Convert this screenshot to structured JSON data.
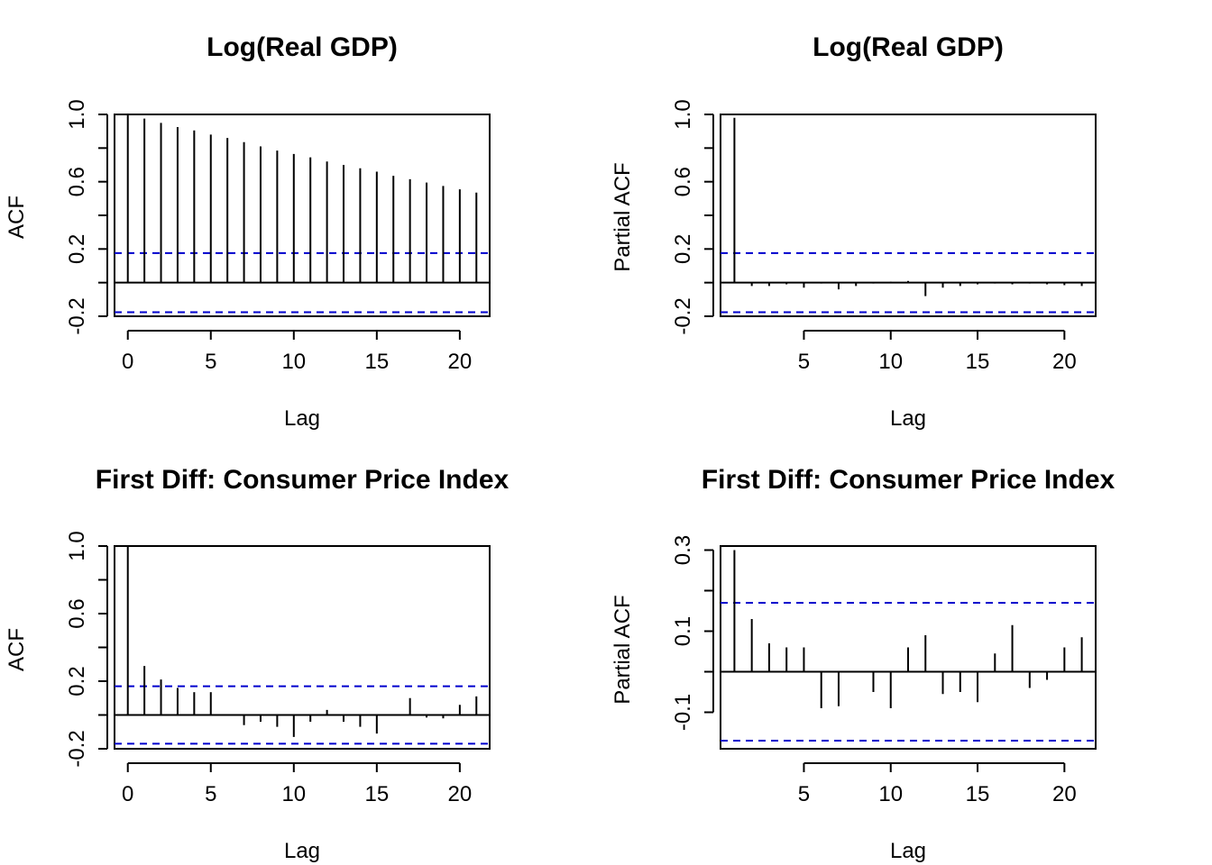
{
  "chart_data": [
    {
      "type": "bar",
      "title": "Log(Real GDP)",
      "xlabel": "Lag",
      "ylabel": "ACF",
      "xlim": [
        -0.8,
        21.8
      ],
      "ylim": [
        -0.2,
        1.0
      ],
      "xticks": [
        0,
        5,
        10,
        15,
        20
      ],
      "xtick_labels": [
        "0",
        "5",
        "10",
        "15",
        "20"
      ],
      "yticks": [
        -0.2,
        0.2,
        0.6,
        1.0
      ],
      "ytick_labels": [
        "-0.2",
        "0.2",
        "0.6",
        "1.0"
      ],
      "yminor": [
        0.0,
        0.4,
        0.8
      ],
      "conf_bound": 0.176,
      "line_color": "#000000",
      "conf_color": "#0000cd",
      "x": [
        0,
        1,
        2,
        3,
        4,
        5,
        6,
        7,
        8,
        9,
        10,
        11,
        12,
        13,
        14,
        15,
        16,
        17,
        18,
        19,
        20,
        21
      ],
      "values": [
        1.0,
        0.975,
        0.95,
        0.925,
        0.905,
        0.88,
        0.86,
        0.835,
        0.81,
        0.785,
        0.765,
        0.745,
        0.72,
        0.7,
        0.68,
        0.66,
        0.635,
        0.615,
        0.595,
        0.575,
        0.555,
        0.535
      ]
    },
    {
      "type": "bar",
      "title": "Log(Real GDP)",
      "xlabel": "Lag",
      "ylabel": "Partial ACF",
      "xlim": [
        0.2,
        21.8
      ],
      "ylim": [
        -0.2,
        1.0
      ],
      "xticks": [
        5,
        10,
        15,
        20
      ],
      "xtick_labels": [
        "5",
        "10",
        "15",
        "20"
      ],
      "yticks": [
        -0.2,
        0.2,
        0.6,
        1.0
      ],
      "ytick_labels": [
        "-0.2",
        "0.2",
        "0.6",
        "1.0"
      ],
      "yminor": [
        0.0,
        0.4,
        0.8
      ],
      "conf_bound": 0.176,
      "line_color": "#000000",
      "conf_color": "#0000cd",
      "x": [
        1,
        2,
        3,
        4,
        5,
        6,
        7,
        8,
        9,
        10,
        11,
        12,
        13,
        14,
        15,
        16,
        17,
        18,
        19,
        20,
        21
      ],
      "values": [
        0.98,
        -0.02,
        -0.02,
        -0.01,
        -0.03,
        -0.005,
        -0.04,
        -0.02,
        -0.005,
        0.005,
        0.01,
        -0.08,
        -0.03,
        -0.02,
        -0.01,
        -0.005,
        -0.01,
        -0.005,
        -0.01,
        -0.015,
        -0.02
      ]
    },
    {
      "type": "bar",
      "title": "First Diff: Consumer Price Index",
      "xlabel": "Lag",
      "ylabel": "ACF",
      "xlim": [
        -0.8,
        21.8
      ],
      "ylim": [
        -0.2,
        1.0
      ],
      "xticks": [
        0,
        5,
        10,
        15,
        20
      ],
      "xtick_labels": [
        "0",
        "5",
        "10",
        "15",
        "20"
      ],
      "yticks": [
        -0.2,
        0.2,
        0.6,
        1.0
      ],
      "ytick_labels": [
        "-0.2",
        "0.2",
        "0.6",
        "1.0"
      ],
      "yminor": [
        0.0,
        0.4,
        0.8
      ],
      "conf_bound": 0.17,
      "line_color": "#000000",
      "conf_color": "#0000cd",
      "x": [
        0,
        1,
        2,
        3,
        4,
        5,
        6,
        7,
        8,
        9,
        10,
        11,
        12,
        13,
        14,
        15,
        16,
        17,
        18,
        19,
        20,
        21
      ],
      "values": [
        1.0,
        0.29,
        0.21,
        0.16,
        0.135,
        0.135,
        0.0,
        -0.06,
        -0.04,
        -0.07,
        -0.13,
        -0.04,
        0.03,
        -0.04,
        -0.07,
        -0.11,
        0.0,
        0.1,
        -0.015,
        -0.02,
        0.06,
        0.11
      ]
    },
    {
      "type": "bar",
      "title": "First Diff: Consumer Price Index",
      "xlabel": "Lag",
      "ylabel": "Partial ACF",
      "xlim": [
        0.2,
        21.8
      ],
      "ylim": [
        -0.19,
        0.31
      ],
      "xticks": [
        5,
        10,
        15,
        20
      ],
      "xtick_labels": [
        "5",
        "10",
        "15",
        "20"
      ],
      "yticks": [
        -0.1,
        0.1,
        0.3
      ],
      "ytick_labels": [
        "-0.1",
        "0.1",
        "0.3"
      ],
      "yminor": [
        0.0,
        0.2
      ],
      "conf_bound": 0.17,
      "line_color": "#000000",
      "conf_color": "#0000cd",
      "x": [
        1,
        2,
        3,
        4,
        5,
        6,
        7,
        8,
        9,
        10,
        11,
        12,
        13,
        14,
        15,
        16,
        17,
        18,
        19,
        20,
        21
      ],
      "values": [
        0.3,
        0.13,
        0.07,
        0.06,
        0.06,
        -0.09,
        -0.085,
        0.0,
        -0.05,
        -0.09,
        0.06,
        0.09,
        -0.055,
        -0.05,
        -0.075,
        0.045,
        0.115,
        -0.04,
        -0.02,
        0.06,
        0.085
      ]
    }
  ]
}
